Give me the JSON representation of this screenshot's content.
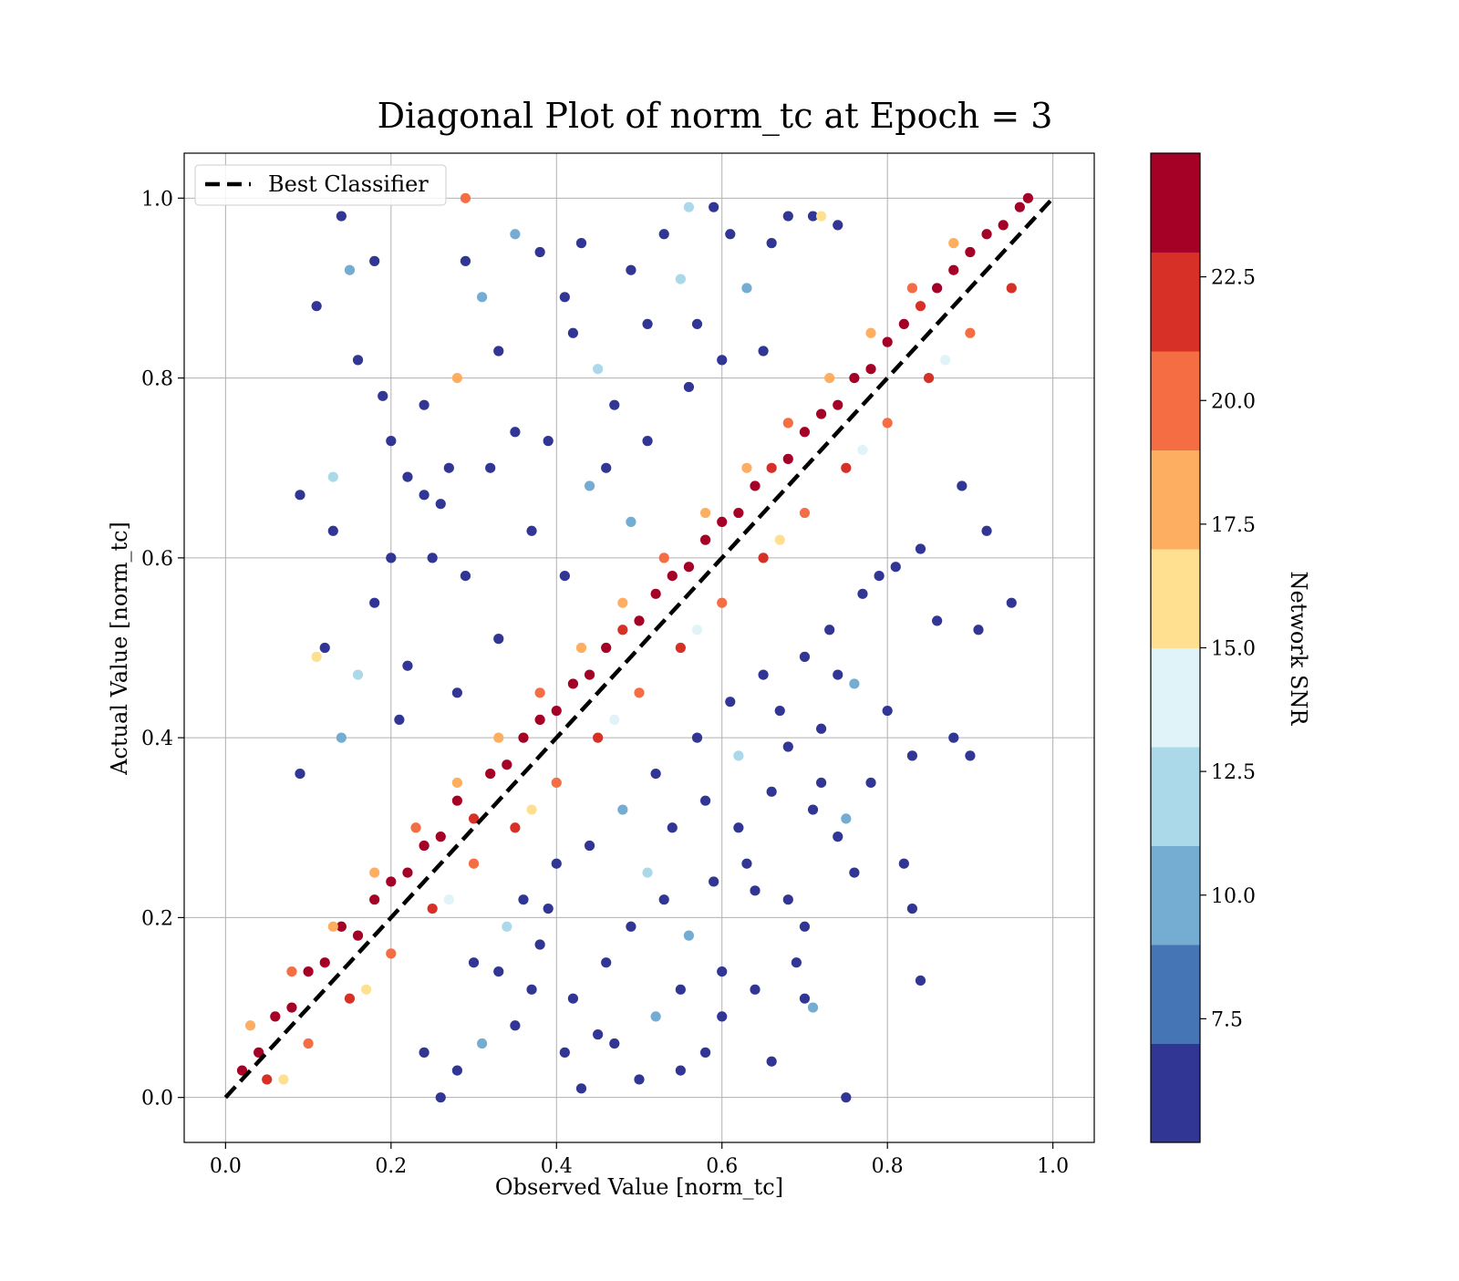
{
  "chart_data": {
    "type": "scatter",
    "title": "Diagonal Plot of norm_tc at Epoch = 3",
    "xlabel": "Observed Value [norm_tc]",
    "ylabel": "Actual Value [norm_tc]",
    "xlim": [
      -0.05,
      1.05
    ],
    "ylim": [
      -0.05,
      1.05
    ],
    "x_ticks": [
      0.0,
      0.2,
      0.4,
      0.6,
      0.8,
      1.0
    ],
    "y_ticks": [
      0.0,
      0.2,
      0.4,
      0.6,
      0.8,
      1.0
    ],
    "x_tick_labels": [
      "0.0",
      "0.2",
      "0.4",
      "0.6",
      "0.8",
      "1.0"
    ],
    "y_tick_labels": [
      "0.0",
      "0.2",
      "0.4",
      "0.6",
      "0.8",
      "1.0"
    ],
    "grid": true,
    "legend": {
      "placement": "upper-left",
      "entries": [
        "Best Classifier"
      ]
    },
    "reference_line": {
      "name": "Best Classifier",
      "x": [
        0.0,
        1.0
      ],
      "y": [
        0.0,
        1.0
      ],
      "style": "dashed",
      "color": "#000000"
    },
    "colorbar": {
      "label": "Network SNR",
      "range": [
        5.0,
        25.0
      ],
      "tick_values": [
        7.5,
        10.0,
        12.5,
        15.0,
        17.5,
        20.0,
        22.5
      ],
      "tick_labels": [
        "7.5",
        "10.0",
        "12.5",
        "15.0",
        "17.5",
        "20.0",
        "22.5"
      ],
      "colors": [
        "#313695",
        "#4575b4",
        "#74add1",
        "#abd9e9",
        "#e0f3f8",
        "#fee090",
        "#fdae61",
        "#f46d43",
        "#d73027",
        "#a50026"
      ]
    },
    "points": [
      [
        0.02,
        0.03,
        24
      ],
      [
        0.04,
        0.05,
        24
      ],
      [
        0.06,
        0.09,
        24
      ],
      [
        0.08,
        0.1,
        23
      ],
      [
        0.1,
        0.14,
        24
      ],
      [
        0.12,
        0.15,
        24
      ],
      [
        0.14,
        0.19,
        23
      ],
      [
        0.16,
        0.18,
        24
      ],
      [
        0.18,
        0.22,
        24
      ],
      [
        0.2,
        0.24,
        24
      ],
      [
        0.22,
        0.25,
        23
      ],
      [
        0.24,
        0.28,
        24
      ],
      [
        0.26,
        0.29,
        24
      ],
      [
        0.28,
        0.33,
        24
      ],
      [
        0.3,
        0.31,
        22
      ],
      [
        0.32,
        0.36,
        24
      ],
      [
        0.34,
        0.37,
        24
      ],
      [
        0.36,
        0.4,
        24
      ],
      [
        0.38,
        0.42,
        23
      ],
      [
        0.4,
        0.43,
        24
      ],
      [
        0.42,
        0.46,
        24
      ],
      [
        0.44,
        0.47,
        24
      ],
      [
        0.46,
        0.5,
        24
      ],
      [
        0.48,
        0.52,
        22
      ],
      [
        0.5,
        0.53,
        24
      ],
      [
        0.52,
        0.56,
        24
      ],
      [
        0.54,
        0.58,
        24
      ],
      [
        0.56,
        0.59,
        23
      ],
      [
        0.58,
        0.62,
        24
      ],
      [
        0.6,
        0.64,
        24
      ],
      [
        0.62,
        0.65,
        24
      ],
      [
        0.64,
        0.68,
        24
      ],
      [
        0.66,
        0.7,
        22
      ],
      [
        0.68,
        0.71,
        24
      ],
      [
        0.7,
        0.74,
        24
      ],
      [
        0.72,
        0.76,
        24
      ],
      [
        0.74,
        0.77,
        23
      ],
      [
        0.76,
        0.8,
        24
      ],
      [
        0.78,
        0.81,
        24
      ],
      [
        0.8,
        0.84,
        24
      ],
      [
        0.82,
        0.86,
        24
      ],
      [
        0.84,
        0.88,
        22
      ],
      [
        0.86,
        0.9,
        24
      ],
      [
        0.88,
        0.92,
        24
      ],
      [
        0.9,
        0.94,
        24
      ],
      [
        0.92,
        0.96,
        23
      ],
      [
        0.94,
        0.97,
        24
      ],
      [
        0.96,
        0.99,
        24
      ],
      [
        0.97,
        1.0,
        24
      ],
      [
        0.05,
        0.02,
        21
      ],
      [
        0.1,
        0.06,
        20
      ],
      [
        0.15,
        0.11,
        21
      ],
      [
        0.2,
        0.16,
        20
      ],
      [
        0.25,
        0.21,
        22
      ],
      [
        0.3,
        0.26,
        20
      ],
      [
        0.35,
        0.3,
        21
      ],
      [
        0.4,
        0.35,
        20
      ],
      [
        0.45,
        0.4,
        22
      ],
      [
        0.5,
        0.45,
        20
      ],
      [
        0.55,
        0.5,
        21
      ],
      [
        0.6,
        0.55,
        20
      ],
      [
        0.65,
        0.6,
        22
      ],
      [
        0.7,
        0.65,
        20
      ],
      [
        0.75,
        0.7,
        21
      ],
      [
        0.8,
        0.75,
        20
      ],
      [
        0.85,
        0.8,
        22
      ],
      [
        0.9,
        0.85,
        20
      ],
      [
        0.95,
        0.9,
        21
      ],
      [
        0.03,
        0.08,
        18
      ],
      [
        0.08,
        0.14,
        19
      ],
      [
        0.13,
        0.19,
        18
      ],
      [
        0.18,
        0.25,
        17
      ],
      [
        0.23,
        0.3,
        19
      ],
      [
        0.28,
        0.35,
        18
      ],
      [
        0.33,
        0.4,
        17
      ],
      [
        0.38,
        0.45,
        19
      ],
      [
        0.43,
        0.5,
        18
      ],
      [
        0.48,
        0.55,
        17
      ],
      [
        0.53,
        0.6,
        19
      ],
      [
        0.58,
        0.65,
        18
      ],
      [
        0.63,
        0.7,
        17
      ],
      [
        0.68,
        0.75,
        19
      ],
      [
        0.73,
        0.8,
        18
      ],
      [
        0.78,
        0.85,
        17
      ],
      [
        0.83,
        0.9,
        19
      ],
      [
        0.88,
        0.95,
        18
      ],
      [
        0.07,
        0.02,
        16
      ],
      [
        0.17,
        0.12,
        15
      ],
      [
        0.27,
        0.22,
        14
      ],
      [
        0.37,
        0.32,
        15
      ],
      [
        0.47,
        0.42,
        13
      ],
      [
        0.57,
        0.52,
        14
      ],
      [
        0.67,
        0.62,
        15
      ],
      [
        0.77,
        0.72,
        13
      ],
      [
        0.87,
        0.82,
        14
      ],
      [
        0.14,
        0.98,
        6
      ],
      [
        0.11,
        0.88,
        6
      ],
      [
        0.16,
        0.82,
        6
      ],
      [
        0.19,
        0.78,
        6
      ],
      [
        0.2,
        0.73,
        6
      ],
      [
        0.09,
        0.67,
        6
      ],
      [
        0.13,
        0.63,
        6
      ],
      [
        0.13,
        0.69,
        11
      ],
      [
        0.15,
        0.92,
        9
      ],
      [
        0.18,
        0.93,
        6
      ],
      [
        0.22,
        0.69,
        6
      ],
      [
        0.24,
        0.67,
        6
      ],
      [
        0.27,
        0.7,
        6
      ],
      [
        0.29,
        0.93,
        6
      ],
      [
        0.31,
        0.89,
        10
      ],
      [
        0.33,
        0.83,
        6
      ],
      [
        0.35,
        0.96,
        10
      ],
      [
        0.38,
        0.94,
        6
      ],
      [
        0.41,
        0.89,
        6
      ],
      [
        0.43,
        0.95,
        6
      ],
      [
        0.45,
        0.81,
        11
      ],
      [
        0.47,
        0.77,
        6
      ],
      [
        0.49,
        0.92,
        6
      ],
      [
        0.51,
        0.86,
        6
      ],
      [
        0.53,
        0.96,
        6
      ],
      [
        0.55,
        0.91,
        12
      ],
      [
        0.57,
        0.86,
        6
      ],
      [
        0.59,
        0.99,
        6
      ],
      [
        0.61,
        0.96,
        6
      ],
      [
        0.63,
        0.9,
        9
      ],
      [
        0.66,
        0.95,
        6
      ],
      [
        0.68,
        0.98,
        6
      ],
      [
        0.71,
        0.98,
        6
      ],
      [
        0.74,
        0.97,
        6
      ],
      [
        0.37,
        0.63,
        6
      ],
      [
        0.41,
        0.58,
        6
      ],
      [
        0.44,
        0.68,
        10
      ],
      [
        0.32,
        0.7,
        6
      ],
      [
        0.26,
        0.66,
        6
      ],
      [
        0.28,
        0.45,
        6
      ],
      [
        0.22,
        0.48,
        6
      ],
      [
        0.16,
        0.47,
        11
      ],
      [
        0.11,
        0.49,
        16
      ],
      [
        0.14,
        0.4,
        9
      ],
      [
        0.09,
        0.36,
        6
      ],
      [
        0.21,
        0.42,
        6
      ],
      [
        0.25,
        0.6,
        6
      ],
      [
        0.29,
        0.58,
        6
      ],
      [
        0.35,
        0.74,
        6
      ],
      [
        0.39,
        0.73,
        6
      ],
      [
        0.46,
        0.7,
        6
      ],
      [
        0.51,
        0.73,
        6
      ],
      [
        0.56,
        0.79,
        6
      ],
      [
        0.6,
        0.82,
        6
      ],
      [
        0.65,
        0.83,
        6
      ],
      [
        0.49,
        0.64,
        9
      ],
      [
        0.42,
        0.85,
        6
      ],
      [
        0.28,
        0.8,
        17
      ],
      [
        0.24,
        0.77,
        6
      ],
      [
        0.18,
        0.55,
        6
      ],
      [
        0.12,
        0.5,
        6
      ],
      [
        0.2,
        0.6,
        6
      ],
      [
        0.33,
        0.51,
        6
      ],
      [
        0.95,
        0.55,
        6
      ],
      [
        0.91,
        0.52,
        6
      ],
      [
        0.86,
        0.53,
        6
      ],
      [
        0.92,
        0.63,
        6
      ],
      [
        0.89,
        0.68,
        6
      ],
      [
        0.81,
        0.59,
        6
      ],
      [
        0.84,
        0.61,
        6
      ],
      [
        0.8,
        0.43,
        6
      ],
      [
        0.88,
        0.4,
        6
      ],
      [
        0.9,
        0.38,
        6
      ],
      [
        0.83,
        0.38,
        6
      ],
      [
        0.79,
        0.58,
        6
      ],
      [
        0.82,
        0.26,
        6
      ],
      [
        0.83,
        0.21,
        6
      ],
      [
        0.84,
        0.13,
        6
      ],
      [
        0.75,
        0.31,
        9
      ],
      [
        0.76,
        0.25,
        6
      ],
      [
        0.74,
        0.29,
        6
      ],
      [
        0.71,
        0.32,
        6
      ],
      [
        0.72,
        0.35,
        6
      ],
      [
        0.78,
        0.35,
        6
      ],
      [
        0.7,
        0.11,
        6
      ],
      [
        0.71,
        0.1,
        9
      ],
      [
        0.69,
        0.15,
        6
      ],
      [
        0.7,
        0.19,
        6
      ],
      [
        0.68,
        0.22,
        6
      ],
      [
        0.75,
        0.0,
        6
      ],
      [
        0.72,
        0.41,
        6
      ],
      [
        0.76,
        0.46,
        10
      ],
      [
        0.66,
        0.04,
        6
      ],
      [
        0.62,
        0.3,
        6
      ],
      [
        0.64,
        0.23,
        6
      ],
      [
        0.6,
        0.14,
        6
      ],
      [
        0.58,
        0.05,
        6
      ],
      [
        0.55,
        0.12,
        6
      ],
      [
        0.52,
        0.09,
        9
      ],
      [
        0.5,
        0.02,
        6
      ],
      [
        0.47,
        0.06,
        6
      ],
      [
        0.43,
        0.01,
        6
      ],
      [
        0.46,
        0.15,
        6
      ],
      [
        0.49,
        0.19,
        6
      ],
      [
        0.53,
        0.22,
        6
      ],
      [
        0.56,
        0.18,
        10
      ],
      [
        0.59,
        0.24,
        6
      ],
      [
        0.63,
        0.26,
        6
      ],
      [
        0.66,
        0.34,
        6
      ],
      [
        0.68,
        0.39,
        6
      ],
      [
        0.42,
        0.11,
        6
      ],
      [
        0.38,
        0.17,
        6
      ],
      [
        0.35,
        0.08,
        6
      ],
      [
        0.33,
        0.14,
        6
      ],
      [
        0.31,
        0.06,
        10
      ],
      [
        0.28,
        0.03,
        6
      ],
      [
        0.26,
        0.0,
        6
      ],
      [
        0.24,
        0.05,
        6
      ],
      [
        0.39,
        0.21,
        6
      ],
      [
        0.44,
        0.28,
        6
      ],
      [
        0.48,
        0.32,
        9
      ],
      [
        0.52,
        0.36,
        6
      ],
      [
        0.57,
        0.4,
        6
      ],
      [
        0.61,
        0.44,
        6
      ],
      [
        0.65,
        0.47,
        6
      ],
      [
        0.54,
        0.3,
        6
      ],
      [
        0.51,
        0.25,
        11
      ],
      [
        0.4,
        0.26,
        6
      ],
      [
        0.36,
        0.22,
        6
      ],
      [
        0.58,
        0.33,
        6
      ],
      [
        0.62,
        0.38,
        12
      ],
      [
        0.67,
        0.43,
        6
      ],
      [
        0.7,
        0.49,
        6
      ],
      [
        0.73,
        0.52,
        6
      ],
      [
        0.77,
        0.56,
        6
      ],
      [
        0.74,
        0.47,
        6
      ],
      [
        0.55,
        0.03,
        6
      ],
      [
        0.45,
        0.07,
        6
      ],
      [
        0.3,
        0.15,
        6
      ],
      [
        0.34,
        0.19,
        11
      ],
      [
        0.37,
        0.12,
        6
      ],
      [
        0.41,
        0.05,
        6
      ],
      [
        0.6,
        0.09,
        6
      ],
      [
        0.64,
        0.12,
        6
      ],
      [
        0.29,
        1.0,
        20
      ],
      [
        0.56,
        0.99,
        12
      ],
      [
        0.72,
        0.98,
        16
      ]
    ]
  }
}
